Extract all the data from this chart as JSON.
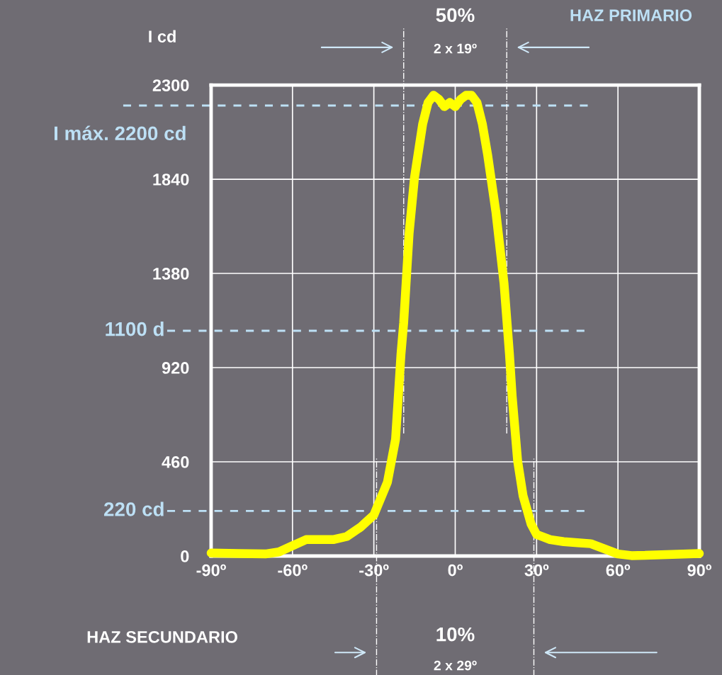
{
  "chart_data": {
    "type": "line",
    "ylabel": "I cd",
    "x": [
      -90,
      -80,
      -70,
      -65,
      -60,
      -55,
      -45,
      -40,
      -35,
      -30,
      -25,
      -22,
      -20,
      -19,
      -17,
      -15,
      -12,
      -10,
      -8,
      -6,
      -4,
      -2,
      0,
      2,
      4,
      6,
      8,
      10,
      12,
      15,
      18,
      20,
      21,
      23,
      25,
      28,
      30,
      35,
      40,
      45,
      50,
      55,
      60,
      65,
      70,
      80,
      90
    ],
    "series": [
      {
        "color": "#ffff00",
        "values": [
          15,
          12,
          10,
          20,
          50,
          80,
          80,
          95,
          140,
          200,
          360,
          570,
          985,
          1140,
          1575,
          1850,
          2110,
          2215,
          2250,
          2230,
          2195,
          2215,
          2195,
          2230,
          2250,
          2250,
          2215,
          2110,
          1955,
          1680,
          1330,
          985,
          780,
          465,
          295,
          155,
          105,
          80,
          70,
          65,
          60,
          35,
          10,
          2,
          3,
          8,
          12
        ]
      }
    ],
    "xlim": [
      -90,
      90
    ],
    "xticks": [
      {
        "value": -90,
        "label": "-90º"
      },
      {
        "value": -60,
        "label": "-60º"
      },
      {
        "value": -30,
        "label": "-30º"
      },
      {
        "value": 0,
        "label": "0º"
      },
      {
        "value": 30,
        "label": "30º"
      },
      {
        "value": 60,
        "label": "60º"
      },
      {
        "value": 90,
        "label": "90º"
      }
    ],
    "ylim": [
      0,
      2300
    ],
    "yticks": [
      0,
      460,
      920,
      1380,
      1840,
      2300
    ],
    "grid": true,
    "marker": "none",
    "line_style": "solid",
    "legend": false,
    "ref_lines": [
      {
        "axis": "y",
        "value": 2200,
        "label": "I máx. 2200 cd",
        "color": "#bde0f5",
        "line_style": "dashed"
      },
      {
        "axis": "y",
        "value": 1100,
        "label": "1100 d",
        "color": "#bde0f5",
        "line_style": "dashed"
      },
      {
        "axis": "y",
        "value": 220,
        "label": "220 cd",
        "color": "#bde0f5",
        "line_style": "dashed"
      },
      {
        "axis": "x",
        "value": -19,
        "color": "#ffffff",
        "line_style": "dashdot"
      },
      {
        "axis": "x",
        "value": 19,
        "color": "#ffffff",
        "line_style": "dashdot"
      },
      {
        "axis": "x",
        "value": -29,
        "color": "#ffffff",
        "line_style": "dashdot"
      },
      {
        "axis": "x",
        "value": 29,
        "color": "#ffffff",
        "line_style": "dashdot"
      }
    ],
    "annotations": [
      "50%",
      "2 x 19º",
      "HAZ PRIMARIO",
      "10%",
      "2 x 29º",
      "HAZ SECUNDARIO"
    ]
  }
}
